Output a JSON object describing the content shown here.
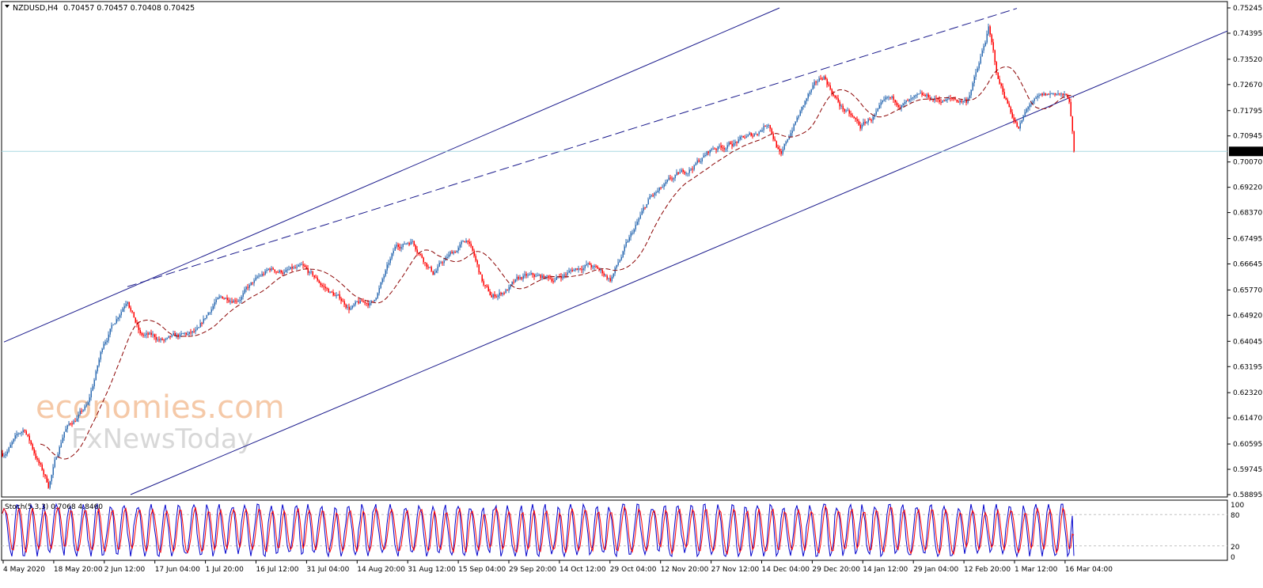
{
  "header": {
    "symbol_label": "NZDUSD,H4",
    "ohlc": "0.70457 0.70457 0.70408 0.70425"
  },
  "stoch": {
    "label": "Stoch(5,3,3) 0.7068 4.8460",
    "levels": [
      "100",
      "80",
      "20",
      "0"
    ]
  },
  "watermark": {
    "line1": "economies.com",
    "line2": "FxNewsToday"
  },
  "colors": {
    "up": "#2f6db3",
    "down": "#ff0000",
    "ma": "#8b0000",
    "trend": "#1a1a8c",
    "bid_line": "#a8d8e0",
    "k": "#0000cc",
    "d": "#ff0000"
  },
  "chart_data": {
    "type": "candlestick",
    "title": "NZDUSD,H4",
    "current_price": "0.70425",
    "ylim": [
      0.58895,
      0.75245
    ],
    "y_ticks": [
      "0.75245",
      "0.74395",
      "0.73520",
      "0.72670",
      "0.71795",
      "0.70945",
      "0.70070",
      "0.69220",
      "0.68370",
      "0.67495",
      "0.66645",
      "0.65770",
      "0.64920",
      "0.64045",
      "0.63195",
      "0.62320",
      "0.61470",
      "0.60595",
      "0.59745",
      "0.58895"
    ],
    "x_ticks": [
      "4 May 2020",
      "18 May 20:00",
      "2 Jun 12:00",
      "17 Jun 04:00",
      "1 Jul 20:00",
      "16 Jul 12:00",
      "31 Jul 04:00",
      "14 Aug 20:00",
      "31 Aug 12:00",
      "15 Sep 04:00",
      "29 Sep 20:00",
      "14 Oct 12:00",
      "29 Oct 04:00",
      "12 Nov 20:00",
      "27 Nov 12:00",
      "14 Dec 04:00",
      "29 Dec 20:00",
      "14 Jan 12:00",
      "29 Jan 04:00",
      "12 Feb 20:00",
      "1 Mar 12:00",
      "16 Mar 04:00"
    ],
    "bar_count": 678,
    "price_path": [
      [
        0,
        0.6028
      ],
      [
        14,
        0.6108
      ],
      [
        29,
        0.5922
      ],
      [
        39,
        0.6108
      ],
      [
        54,
        0.6188
      ],
      [
        64,
        0.6401
      ],
      [
        79,
        0.6561
      ],
      [
        87,
        0.6428
      ],
      [
        104,
        0.6401
      ],
      [
        124,
        0.6428
      ],
      [
        134,
        0.6534
      ],
      [
        149,
        0.6561
      ],
      [
        169,
        0.6641
      ],
      [
        189,
        0.6641
      ],
      [
        209,
        0.6561
      ],
      [
        219,
        0.6521
      ],
      [
        234,
        0.6534
      ],
      [
        249,
        0.672
      ],
      [
        259,
        0.6747
      ],
      [
        272,
        0.6641
      ],
      [
        294,
        0.6747
      ],
      [
        304,
        0.6588
      ],
      [
        309,
        0.6548
      ],
      [
        329,
        0.6614
      ],
      [
        349,
        0.6614
      ],
      [
        369,
        0.6667
      ],
      [
        384,
        0.6614
      ],
      [
        394,
        0.672
      ],
      [
        409,
        0.688
      ],
      [
        429,
        0.696
      ],
      [
        449,
        0.7053
      ],
      [
        474,
        0.7093
      ],
      [
        484,
        0.7146
      ],
      [
        492,
        0.7026
      ],
      [
        499,
        0.712
      ],
      [
        509,
        0.7226
      ],
      [
        519,
        0.7292
      ],
      [
        529,
        0.7199
      ],
      [
        542,
        0.712
      ],
      [
        559,
        0.7199
      ],
      [
        589,
        0.7213
      ],
      [
        609,
        0.7213
      ],
      [
        617,
        0.7333
      ],
      [
        623,
        0.7452
      ],
      [
        629,
        0.7279
      ],
      [
        642,
        0.712
      ],
      [
        649,
        0.7199
      ],
      [
        667,
        0.7239
      ],
      [
        674,
        0.7213
      ],
      [
        677,
        0.70425
      ]
    ],
    "ma_period": 24,
    "trendlines": [
      {
        "name": "upper-channel",
        "from": [
          1,
          0.6402
        ],
        "to": [
          491,
          0.75245
        ],
        "style": "solid"
      },
      {
        "name": "lower-channel",
        "from": [
          81,
          0.58895
        ],
        "to": [
          774,
          0.7447
        ],
        "style": "solid"
      },
      {
        "name": "resistance-dashed",
        "from": [
          79,
          0.6588
        ],
        "to": [
          641,
          0.7523
        ],
        "style": "dashed"
      }
    ],
    "stoch_params": [
      5,
      3,
      3
    ]
  }
}
